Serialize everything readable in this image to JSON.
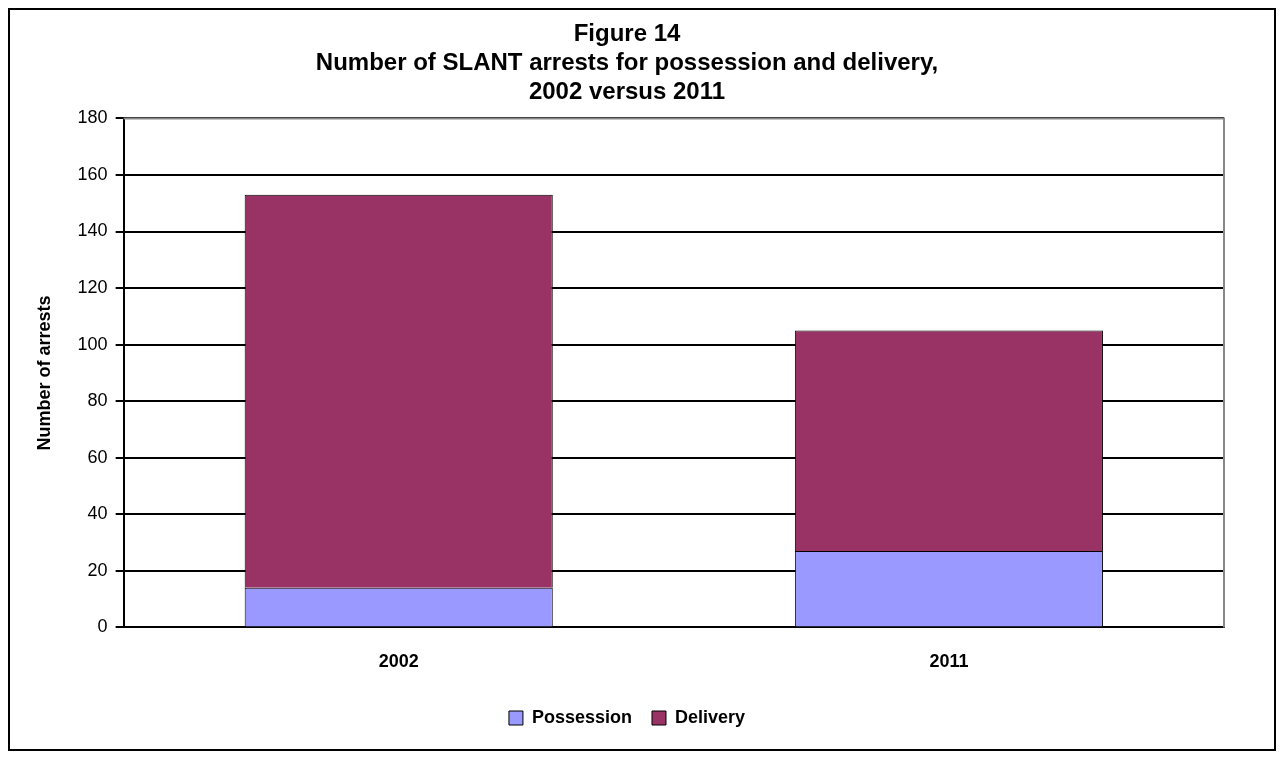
{
  "chart_data": {
    "type": "bar",
    "title": "Figure 14\nNumber of SLANT arrests for possession and delivery,\n2002 versus 2011",
    "ylabel": "Number of arrests",
    "categories": [
      "2002",
      "2011"
    ],
    "stacked": true,
    "series": [
      {
        "name": "Possession",
        "color": "#9999ff",
        "values": [
          14,
          27
        ]
      },
      {
        "name": "Delivery",
        "color": "#993366",
        "values": [
          139,
          78
        ]
      }
    ],
    "ylim": [
      0,
      180
    ],
    "yticks": [
      0,
      20,
      40,
      60,
      80,
      100,
      120,
      140,
      160,
      180
    ],
    "grid": "y",
    "legend": "bottom"
  }
}
